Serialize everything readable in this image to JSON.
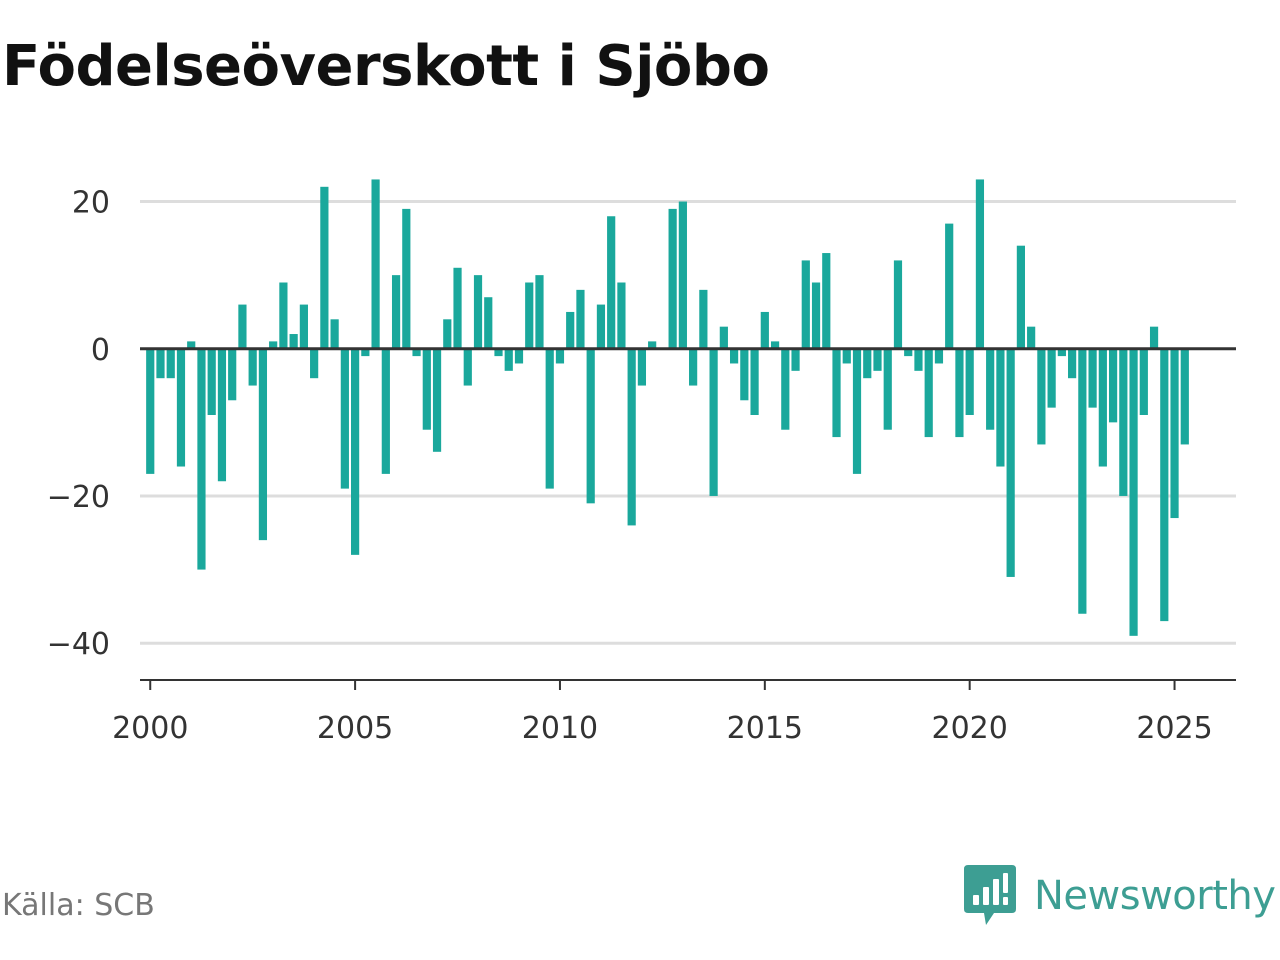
{
  "title": "Födelseöverskott i Sjöbo",
  "source": "Källa: SCB",
  "brand": {
    "name": "Newsworthy",
    "logo_icon": "newsworthy-bar-chart-speech-bubble-icon"
  },
  "colors": {
    "bar": "#1aa89c",
    "grid": "#dddddd",
    "zero_line": "#333333",
    "axis": "#333333",
    "brand": "#3d9e93"
  },
  "chart_data": {
    "type": "bar",
    "title": "Födelseöverskott i Sjöbo",
    "xlabel": "",
    "ylabel": "",
    "frequency": "quarterly",
    "x_start": "2000Q1",
    "xlim": [
      1999.75,
      2026.5
    ],
    "ylim": [
      -45,
      27
    ],
    "yticks": [
      20,
      0,
      -20,
      -40
    ],
    "ytick_labels": [
      "20",
      "0",
      "−20",
      "−40"
    ],
    "xticks": [
      2000,
      2005,
      2010,
      2015,
      2020,
      2025
    ],
    "xtick_labels": [
      "2000",
      "2005",
      "2010",
      "2015",
      "2020",
      "2025"
    ],
    "grid": true,
    "legend": "none",
    "values": [
      -17,
      -4,
      -4,
      -16,
      1,
      -30,
      -9,
      -18,
      -7,
      6,
      -5,
      -26,
      1,
      9,
      2,
      6,
      -4,
      22,
      4,
      -19,
      -28,
      -1,
      23,
      -17,
      10,
      19,
      -1,
      -11,
      -14,
      4,
      11,
      -5,
      10,
      7,
      -1,
      -3,
      -2,
      9,
      10,
      -19,
      -2,
      5,
      8,
      -21,
      6,
      18,
      9,
      -24,
      -5,
      1,
      0,
      19,
      20,
      -5,
      8,
      -20,
      3,
      -2,
      -7,
      -9,
      5,
      1,
      -11,
      -3,
      12,
      9,
      13,
      -12,
      -2,
      -17,
      -4,
      -3,
      -11,
      12,
      -1,
      -3,
      -12,
      -2,
      17,
      -12,
      -9,
      23,
      -11,
      -16,
      -31,
      14,
      3,
      -13,
      -8,
      -1,
      -4,
      -36,
      -8,
      -16,
      -10,
      -20,
      -39,
      -9,
      3,
      -37,
      -23,
      -13
    ]
  }
}
